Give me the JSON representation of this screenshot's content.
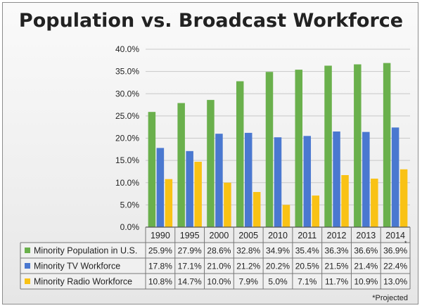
{
  "chart_data": {
    "type": "bar",
    "title": "Population vs. Broadcast Workforce",
    "categories": [
      "1990",
      "1995",
      "2000",
      "2005",
      "2010",
      "2011",
      "2012",
      "2013",
      "2014"
    ],
    "ylim": [
      0,
      40
    ],
    "y_ticks": [
      "0.0%",
      "5.0%",
      "10.0%",
      "15.0%",
      "20.0%",
      "25.0%",
      "30.0%",
      "35.0%",
      "40.0%"
    ],
    "grid": true,
    "legend": "data-table",
    "series": [
      {
        "name": "Minority Population in U.S.",
        "color": "#6ab04c",
        "values": [
          25.9,
          27.9,
          28.6,
          32.8,
          34.9,
          35.4,
          36.3,
          36.6,
          36.9
        ],
        "labels": [
          "25.9%",
          "27.9%",
          "28.6%",
          "32.8%",
          "34.9%",
          "35.4%",
          "36.3%",
          "36.6%",
          "36.9%"
        ]
      },
      {
        "name": "Minority TV Workforce",
        "color": "#4a78d0",
        "values": [
          17.8,
          17.1,
          21.0,
          21.2,
          20.2,
          20.5,
          21.5,
          21.4,
          22.4
        ],
        "labels": [
          "17.8%",
          "17.1%",
          "21.0%",
          "21.2%",
          "20.2%",
          "20.5%",
          "21.5%",
          "21.4%",
          "22.4%"
        ]
      },
      {
        "name": "Minority Radio Workforce",
        "color": "#f9c215",
        "values": [
          10.8,
          14.7,
          10.0,
          7.9,
          5.0,
          7.1,
          11.7,
          10.9,
          13.0
        ],
        "labels": [
          "10.8%",
          "14.7%",
          "10.0%",
          "7.9%",
          "5.0%",
          "7.1%",
          "11.7%",
          "10.9%",
          "13.0%"
        ]
      }
    ],
    "projected_mark": "*",
    "footnote": "*Projected"
  }
}
